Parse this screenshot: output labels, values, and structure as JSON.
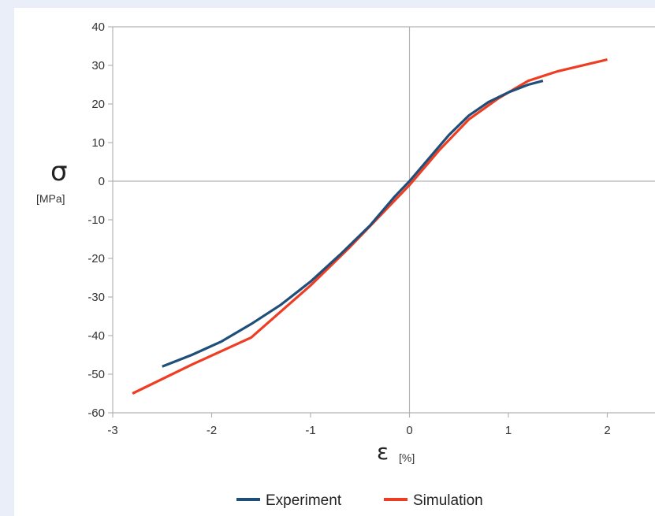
{
  "chart_data": {
    "type": "line",
    "ylabel_symbol": "σ",
    "ylabel_unit": "[MPa]",
    "xlabel_symbol": "ε",
    "xlabel_unit": "[%]",
    "xlim": [
      -3,
      2.5
    ],
    "ylim": [
      -60,
      40
    ],
    "x_ticks": [
      -3,
      -2,
      -1,
      0,
      1,
      2
    ],
    "y_ticks": [
      40,
      30,
      20,
      10,
      0,
      -10,
      -20,
      -30,
      -40,
      -50,
      -60
    ],
    "grid": "zero lines only",
    "legend_position": "bottom-center",
    "series": [
      {
        "name": "Experiment",
        "color": "#1f4e79",
        "x": [
          -2.5,
          -2.2,
          -1.9,
          -1.6,
          -1.3,
          -1.0,
          -0.7,
          -0.4,
          -0.15,
          0.0,
          0.2,
          0.4,
          0.6,
          0.8,
          1.0,
          1.2,
          1.35
        ],
        "y": [
          -48,
          -45,
          -41.5,
          -37,
          -32,
          -26,
          -19,
          -11.5,
          -4,
          0,
          6,
          12,
          17,
          20.5,
          23,
          25,
          26
        ]
      },
      {
        "name": "Simulation",
        "color": "#ee3d22",
        "x": [
          -2.8,
          -2.2,
          -1.6,
          -1.0,
          -0.6,
          -0.3,
          0.0,
          0.3,
          0.6,
          0.9,
          1.2,
          1.5,
          2.0
        ],
        "y": [
          -55,
          -47.5,
          -40.5,
          -27,
          -17,
          -9,
          -1,
          8,
          16,
          21.5,
          26,
          28.5,
          31.5
        ]
      }
    ]
  }
}
